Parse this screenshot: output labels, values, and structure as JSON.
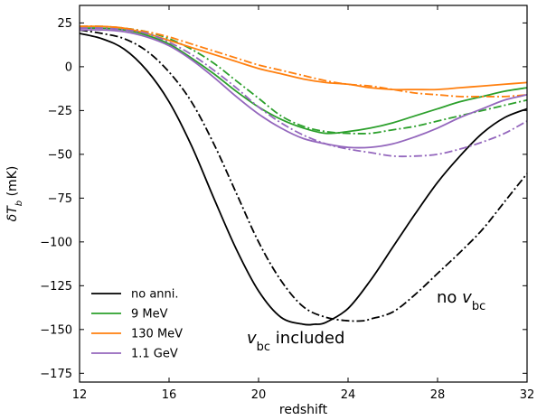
{
  "chart_data": {
    "type": "line",
    "title": "",
    "xlabel": "redshift",
    "ylabel": "δT_b (mK)",
    "xlim": [
      12,
      32
    ],
    "ylim": [
      -180,
      35
    ],
    "xticks": [
      12,
      16,
      20,
      24,
      28,
      32
    ],
    "yticks": [
      25,
      0,
      -25,
      -50,
      -75,
      -100,
      -125,
      -150,
      -175
    ],
    "xtick_labels": [
      "12",
      "16",
      "20",
      "24",
      "28",
      "32"
    ],
    "ytick_labels": [
      "25",
      "0",
      "−25",
      "−50",
      "−75",
      "−100",
      "−125",
      "−150",
      "−175"
    ],
    "grid": false,
    "legend_position": "lower-left",
    "legend": [
      {
        "label": "no anni.",
        "color": "#000000"
      },
      {
        "label": "9 MeV",
        "color": "#2ca02c"
      },
      {
        "label": "130 MeV",
        "color": "#ff7f0e"
      },
      {
        "label": "1.1 GeV",
        "color": "#9467bd"
      }
    ],
    "line_styles": {
      "vbc_included": "solid",
      "no_vbc": "dashdot"
    },
    "annotations": [
      {
        "text_main": "v",
        "text_sub": "bc",
        "text_rest": " included"
      },
      {
        "text_main": "no v",
        "text_sub": "bc",
        "text_rest": ""
      }
    ],
    "series": [
      {
        "name": "no anni.",
        "style": "solid",
        "color": "#000000",
        "x": [
          12,
          13,
          14,
          15,
          16,
          17,
          18,
          19,
          20,
          21,
          22,
          22.5,
          23,
          24,
          25,
          26,
          27,
          28,
          29,
          30,
          31,
          32
        ],
        "y": [
          19,
          16,
          10,
          -2,
          -20,
          -45,
          -75,
          -104,
          -128,
          -143,
          -147,
          -147,
          -146,
          -138,
          -122,
          -103,
          -84,
          -66,
          -51,
          -38,
          -29,
          -24
        ]
      },
      {
        "name": "no anni. (no v_bc)",
        "style": "dashdot",
        "color": "#000000",
        "x": [
          12,
          13,
          14,
          15,
          16,
          17,
          18,
          19,
          20,
          21,
          22,
          23,
          24,
          24.7,
          25,
          26,
          27,
          28,
          29,
          30,
          31,
          32
        ],
        "y": [
          21,
          19,
          16,
          9,
          -3,
          -20,
          -44,
          -72,
          -100,
          -122,
          -137,
          -143,
          -145,
          -145,
          -144,
          -140,
          -130,
          -118,
          -106,
          -93,
          -77,
          -61
        ]
      },
      {
        "name": "9 MeV",
        "style": "solid",
        "color": "#2ca02c",
        "x": [
          12,
          13,
          14,
          15,
          16,
          17,
          18,
          19,
          20,
          21,
          22,
          23,
          24,
          25,
          26,
          27,
          28,
          29,
          30,
          31,
          32
        ],
        "y": [
          22,
          22,
          21,
          18,
          13,
          5,
          -4,
          -14,
          -23,
          -30,
          -35,
          -38,
          -37,
          -35,
          -32,
          -28,
          -24,
          -20,
          -17,
          -14,
          -12
        ]
      },
      {
        "name": "9 MeV (no v_bc)",
        "style": "dashdot",
        "color": "#2ca02c",
        "x": [
          12,
          13,
          14,
          15,
          16,
          17,
          18,
          19,
          20,
          21,
          22,
          23,
          24,
          25,
          26,
          27,
          28,
          29,
          30,
          31,
          32
        ],
        "y": [
          23,
          23,
          22,
          20,
          16,
          10,
          2,
          -8,
          -18,
          -28,
          -34,
          -37,
          -38,
          -38,
          -36,
          -34,
          -31,
          -28,
          -25,
          -22,
          -19
        ]
      },
      {
        "name": "130 MeV",
        "style": "solid",
        "color": "#ff7f0e",
        "x": [
          12,
          13,
          14,
          15,
          16,
          17,
          18,
          19,
          20,
          21,
          22,
          23,
          24,
          25,
          26,
          27,
          28,
          29,
          30,
          31,
          32
        ],
        "y": [
          23,
          23,
          22,
          19,
          15,
          11,
          7,
          3,
          -1,
          -4,
          -7,
          -9,
          -10,
          -12,
          -13,
          -13,
          -13,
          -12,
          -11,
          -10,
          -9
        ]
      },
      {
        "name": "130 MeV (no v_bc)",
        "style": "dashdot",
        "color": "#ff7f0e",
        "x": [
          12,
          13,
          14,
          15,
          16,
          17,
          18,
          19,
          20,
          21,
          22,
          23,
          24,
          25,
          26,
          27,
          28,
          29,
          30,
          31,
          32
        ],
        "y": [
          23,
          23,
          22,
          20,
          17,
          13,
          9,
          5,
          1,
          -2,
          -5,
          -8,
          -10,
          -11,
          -13,
          -15,
          -16,
          -17,
          -17,
          -17,
          -16
        ]
      },
      {
        "name": "1.1 GeV",
        "style": "solid",
        "color": "#9467bd",
        "x": [
          12,
          13,
          14,
          15,
          16,
          17,
          18,
          19,
          20,
          21,
          22,
          23,
          24,
          25,
          26,
          27,
          28,
          29,
          30,
          31,
          32
        ],
        "y": [
          21,
          21,
          20,
          17,
          12,
          4,
          -6,
          -17,
          -27,
          -35,
          -41,
          -44,
          -46,
          -46,
          -44,
          -40,
          -35,
          -29,
          -24,
          -19,
          -16
        ]
      },
      {
        "name": "1.1 GeV (no v_bc)",
        "style": "dashdot",
        "color": "#9467bd",
        "x": [
          12,
          13,
          14,
          15,
          16,
          17,
          18,
          19,
          20,
          21,
          22,
          23,
          24,
          25,
          26,
          27,
          28,
          29,
          30,
          31,
          32
        ],
        "y": [
          22,
          22,
          21,
          19,
          14,
          7,
          -2,
          -12,
          -23,
          -32,
          -39,
          -44,
          -47,
          -49,
          -51,
          -51,
          -50,
          -47,
          -43,
          -38,
          -31
        ]
      }
    ]
  }
}
